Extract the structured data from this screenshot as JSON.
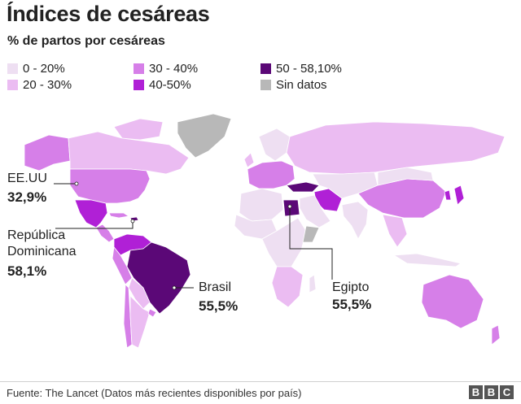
{
  "title": "Índices de cesáreas",
  "subtitle": "% de partos por cesáreas",
  "legend": [
    {
      "label": "0 - 20%",
      "color": "#eedff2"
    },
    {
      "label": "20 - 30%",
      "color": "#ebbcf2"
    },
    {
      "label": "30 - 40%",
      "color": "#d67fe8"
    },
    {
      "label": "40-50%",
      "color": "#b020d6"
    },
    {
      "label": "50 - 58,10%",
      "color": "#5b0877"
    },
    {
      "label": "Sin datos",
      "color": "#b8b8b8"
    }
  ],
  "callouts": {
    "usa": {
      "name": "EE.UU",
      "value": "32,9%"
    },
    "dr": {
      "name_line1": "República",
      "name_line2": "Dominicana",
      "value": "58,1%"
    },
    "brazil": {
      "name": "Brasil",
      "value": "55,5%"
    },
    "egypt": {
      "name": "Egipto",
      "value": "55,5%"
    }
  },
  "footer": "Fuente: The Lancet (Datos más recientes disponibles por país)",
  "brand": [
    "B",
    "B",
    "C"
  ]
}
